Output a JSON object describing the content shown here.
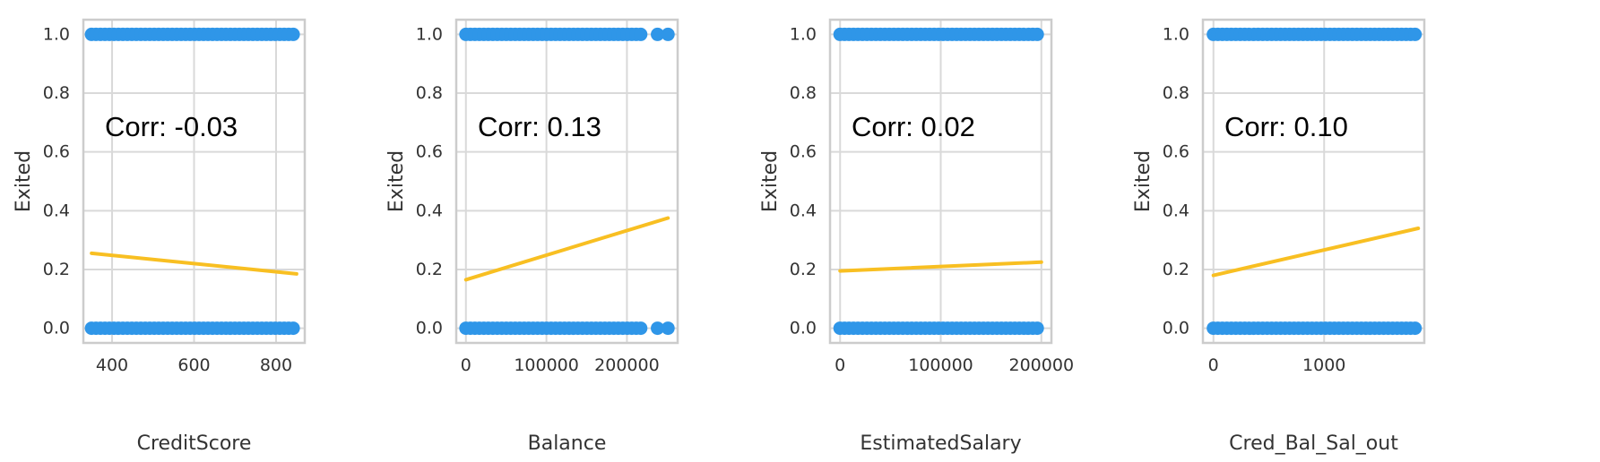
{
  "colors": {
    "points": "#2f96e8",
    "fit_line": "#f8bf22"
  },
  "chart_data": [
    {
      "type": "scatter",
      "xlabel": "CreditScore",
      "ylabel": "Exited",
      "annotation": "Corr: -0.03",
      "xlim": [
        330,
        870
      ],
      "ylim": [
        -0.05,
        1.05
      ],
      "xticks": [
        400,
        600,
        800
      ],
      "xtick_labels": [
        "400",
        "600",
        "800"
      ],
      "yticks": [
        0.0,
        0.2,
        0.4,
        0.6,
        0.8,
        1.0
      ],
      "ytick_labels": [
        "0.0",
        "0.2",
        "0.4",
        "0.6",
        "0.8",
        "1.0"
      ],
      "grid": true,
      "point_ranges": [
        {
          "y": 1,
          "x_min": 350,
          "x_max": 850
        },
        {
          "y": 0,
          "x_min": 350,
          "x_max": 850
        }
      ],
      "isolated_points": [],
      "fit_line": {
        "x": [
          350,
          850
        ],
        "y": [
          0.255,
          0.185
        ]
      }
    },
    {
      "type": "scatter",
      "xlabel": "Balance",
      "ylabel": "Exited",
      "annotation": "Corr: 0.13",
      "xlim": [
        -12000,
        263000
      ],
      "ylim": [
        -0.05,
        1.05
      ],
      "xticks": [
        0,
        100000,
        200000
      ],
      "xtick_labels": [
        "0",
        "100000",
        "200000"
      ],
      "yticks": [
        0.0,
        0.2,
        0.4,
        0.6,
        0.8,
        1.0
      ],
      "ytick_labels": [
        "0.0",
        "0.2",
        "0.4",
        "0.6",
        "0.8",
        "1.0"
      ],
      "grid": true,
      "point_ranges": [
        {
          "y": 1,
          "x_min": 0,
          "x_max": 222000
        },
        {
          "y": 0,
          "x_min": 0,
          "x_max": 222000
        }
      ],
      "isolated_points": [
        {
          "x": 238000,
          "y": 1
        },
        {
          "x": 251000,
          "y": 1
        },
        {
          "x": 238000,
          "y": 0
        },
        {
          "x": 251000,
          "y": 0
        }
      ],
      "fit_line": {
        "x": [
          0,
          251000
        ],
        "y": [
          0.165,
          0.375
        ]
      }
    },
    {
      "type": "scatter",
      "xlabel": "EstimatedSalary",
      "ylabel": "Exited",
      "annotation": "Corr: 0.02",
      "xlim": [
        -10000,
        210000
      ],
      "ylim": [
        -0.05,
        1.05
      ],
      "xticks": [
        0,
        100000,
        200000
      ],
      "xtick_labels": [
        "0",
        "100000",
        "200000"
      ],
      "yticks": [
        0.0,
        0.2,
        0.4,
        0.6,
        0.8,
        1.0
      ],
      "ytick_labels": [
        "0.0",
        "0.2",
        "0.4",
        "0.6",
        "0.8",
        "1.0"
      ],
      "grid": true,
      "point_ranges": [
        {
          "y": 1,
          "x_min": 0,
          "x_max": 200000
        },
        {
          "y": 0,
          "x_min": 0,
          "x_max": 200000
        }
      ],
      "isolated_points": [],
      "fit_line": {
        "x": [
          0,
          200000
        ],
        "y": [
          0.195,
          0.225
        ]
      }
    },
    {
      "type": "scatter",
      "xlabel": "Cred_Bal_Sal_out",
      "ylabel": "Exited",
      "annotation": "Corr: 0.10",
      "xlim": [
        -95,
        1905
      ],
      "ylim": [
        -0.05,
        1.05
      ],
      "xticks": [
        0,
        1000
      ],
      "xtick_labels": [
        "0",
        "1000"
      ],
      "yticks": [
        0.0,
        0.2,
        0.4,
        0.6,
        0.8,
        1.0
      ],
      "ytick_labels": [
        "0.0",
        "0.2",
        "0.4",
        "0.6",
        "0.8",
        "1.0"
      ],
      "grid": true,
      "point_ranges": [
        {
          "y": 1,
          "x_min": 0,
          "x_max": 1850
        },
        {
          "y": 0,
          "x_min": 0,
          "x_max": 1850
        }
      ],
      "isolated_points": [],
      "fit_line": {
        "x": [
          0,
          1850
        ],
        "y": [
          0.18,
          0.34
        ]
      }
    }
  ]
}
